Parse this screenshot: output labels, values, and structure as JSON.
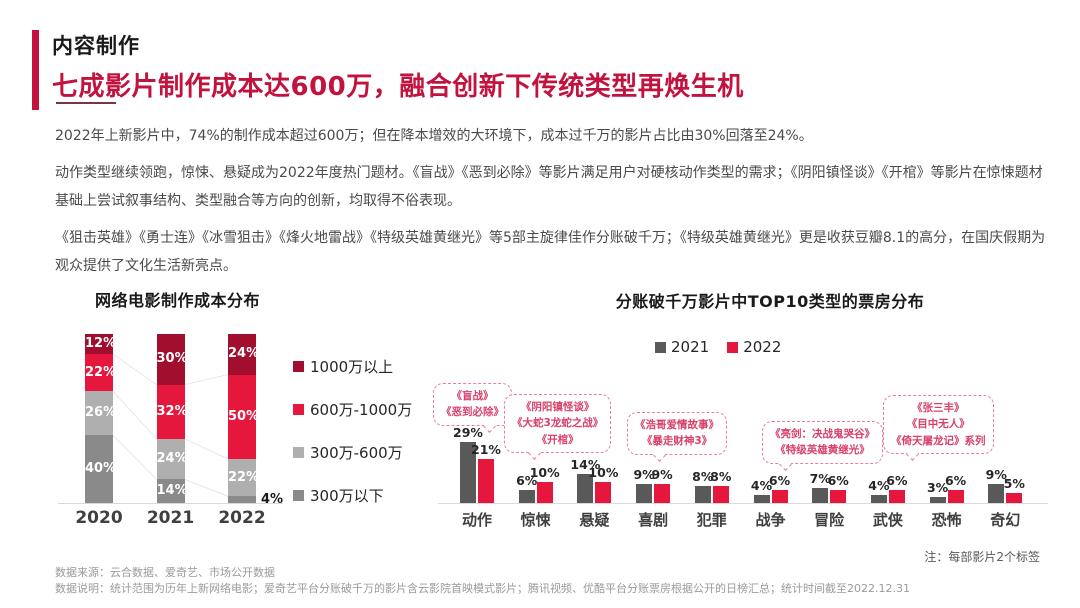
{
  "page": {
    "kicker": "内容制作",
    "headline": "七成影片制作成本达600万，融合创新下传统类型再焕生机",
    "paragraphs": [
      "2022年上新影片中，74%的制作成本超过600万；但在降本增效的大环境下，成本过千万的影片占比由30%回落至24%。",
      "动作类型继续领跑，惊悚、悬疑成为2022年度热门题材。《盲战》《恶到必除》等影片满足用户对硬核动作类型的需求；《阴阳镇怪谈》《开棺》等影片在惊悚题材基础上尝试叙事结构、类型融合等方向的创新，均取得不俗表现。",
      "《狙击英雄》《勇士连》《冰雪狙击》《烽火地雷战》《特级英雄黄继光》等5部主旋律佳作分账破千万；《特级英雄黄继光》更是收获豆瓣8.1的高分，在国庆假期为观众提供了文化生活新亮点。"
    ],
    "footnote_right": "注：每部影片2个标签",
    "source_line": "数据来源：云合数据、爱奇艺、市场公开数据",
    "desc_line": "数据说明：统计范围为历年上新网络电影；爱奇艺平台分账破千万的影片含云影院首映模式影片；腾讯视频、优酷平台分账票房根据公开的日榜汇总；统计时间截至2022.12.31"
  },
  "colors": {
    "accent_red": "#C2123E",
    "dark_red": "#A10E2E",
    "bright_red": "#E6173C",
    "light_gray": "#AFAFAF",
    "dark_gray": "#8A8A8A",
    "gray_2021": "#595959",
    "callout_pink": "#D8406A"
  },
  "chart_data": [
    {
      "type": "bar",
      "subtype": "stacked-percent",
      "title": "网络电影制作成本分布",
      "categories": [
        "2020",
        "2021",
        "2022"
      ],
      "series": [
        {
          "name": "1000万以上",
          "color": "#A10E2E",
          "values": [
            12,
            30,
            24
          ]
        },
        {
          "name": "600万-1000万",
          "color": "#E6173C",
          "values": [
            22,
            32,
            50
          ]
        },
        {
          "name": "300万-600万",
          "color": "#AFAFAF",
          "values": [
            26,
            24,
            22
          ]
        },
        {
          "name": "300万以下",
          "color": "#8A8A8A",
          "values": [
            40,
            14,
            4
          ]
        }
      ],
      "unit": "%",
      "ylim": [
        0,
        100
      ],
      "grid": false,
      "legend_position": "right"
    },
    {
      "type": "bar",
      "subtype": "grouped",
      "title": "分账破千万影片中TOP10类型的票房分布",
      "categories": [
        "动作",
        "惊悚",
        "悬疑",
        "喜剧",
        "犯罪",
        "战争",
        "冒险",
        "武侠",
        "恐怖",
        "奇幻"
      ],
      "series": [
        {
          "name": "2021",
          "color": "#595959",
          "values": [
            29,
            6,
            14,
            9,
            8,
            4,
            7,
            4,
            3,
            9
          ]
        },
        {
          "name": "2022",
          "color": "#E6173C",
          "values": [
            21,
            10,
            10,
            9,
            8,
            6,
            6,
            6,
            6,
            5
          ]
        }
      ],
      "unit": "%",
      "grid": false,
      "legend_position": "top",
      "annotations": [
        {
          "lines": [
            "《盲战》",
            "《恶到必除》"
          ],
          "target": "动作"
        },
        {
          "lines": [
            "《阴阳镇怪谈》",
            "《大蛇3龙蛇之战》",
            "《开棺》"
          ],
          "target": "惊悚"
        },
        {
          "lines": [
            "《浩哥爱情故事》",
            "《暴走财神3》"
          ],
          "target": "喜剧"
        },
        {
          "lines": [
            "《亮剑：决战鬼哭谷》",
            "《特级英雄黄继光》"
          ],
          "target": "战争"
        },
        {
          "lines": [
            "《张三丰》",
            "《目中无人》",
            "《倚天屠龙记》系列"
          ],
          "target": "武侠"
        }
      ]
    }
  ]
}
